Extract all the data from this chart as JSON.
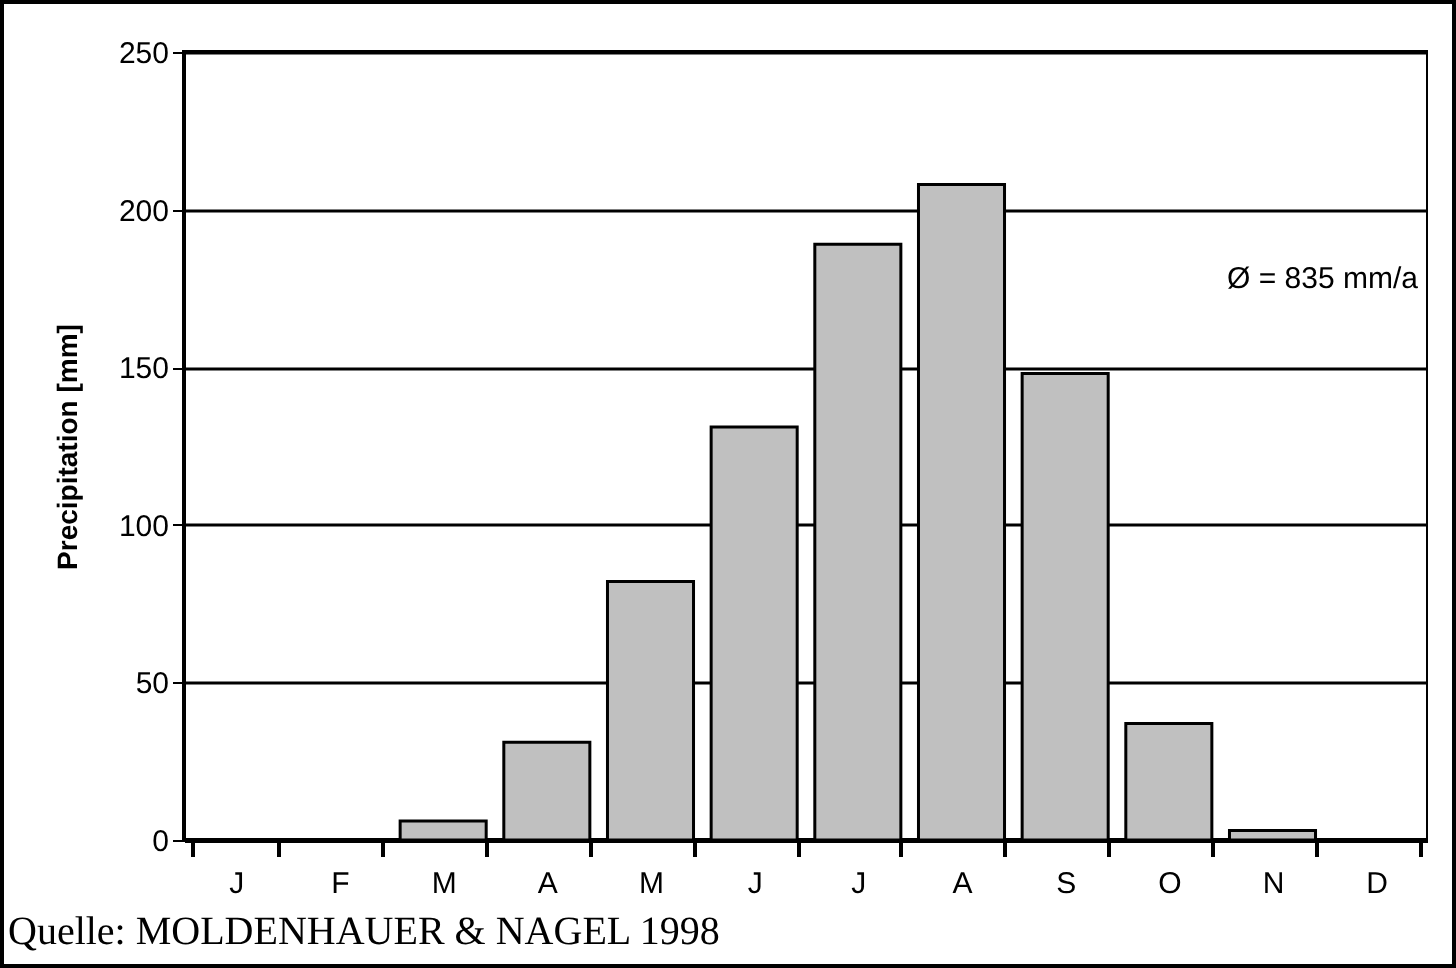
{
  "chart_data": {
    "type": "bar",
    "ylabel": "Precipitation  [mm]",
    "categories": [
      "J",
      "F",
      "M",
      "A",
      "M",
      "J",
      "J",
      "A",
      "S",
      "O",
      "N",
      "D"
    ],
    "values": [
      0,
      0,
      6,
      31,
      82,
      131,
      189,
      208,
      148,
      37,
      3,
      0
    ],
    "color": "#c0c0c0",
    "ylim": [
      0,
      250
    ],
    "yticks": [
      0,
      50,
      100,
      150,
      200,
      250
    ],
    "grid": "y",
    "annotations": [
      "Ø = 835 mm/a",
      "Quelle: MOLDENHAUER & NAGEL 1998"
    ]
  }
}
